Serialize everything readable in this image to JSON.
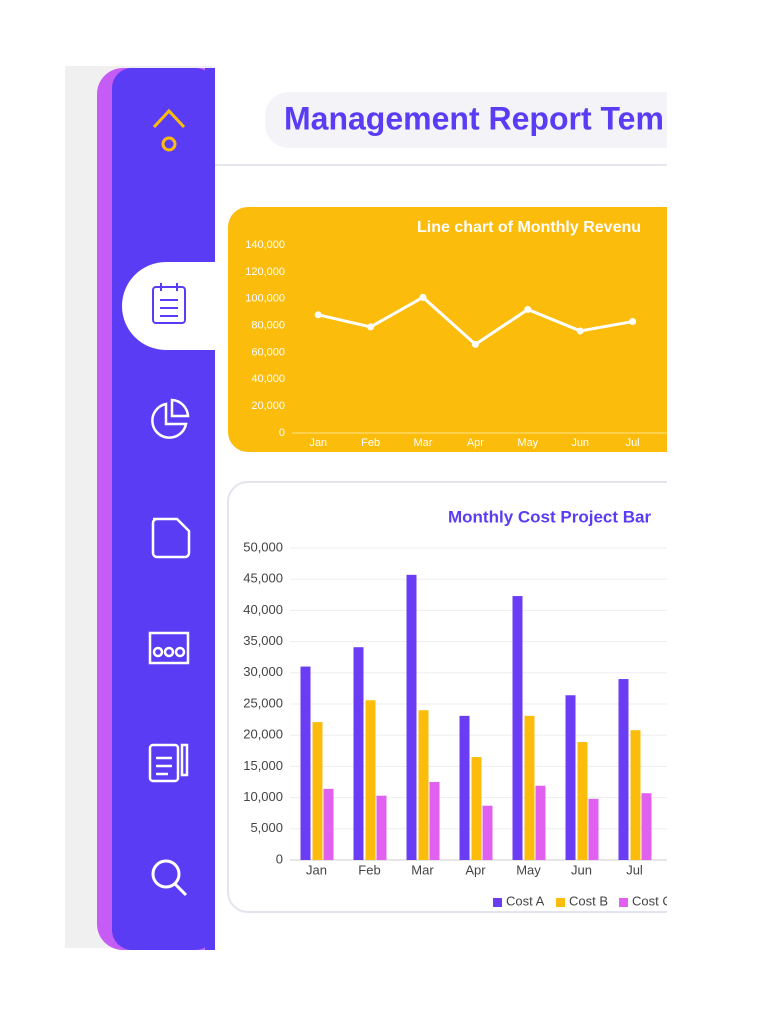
{
  "header": {
    "title": "Management Report Tem"
  },
  "chart_data": [
    {
      "type": "line",
      "title": "Line chart of Monthly Revenu",
      "categories": [
        "Jan",
        "Feb",
        "Mar",
        "Apr",
        "May",
        "Jun",
        "Jul"
      ],
      "values": [
        88000,
        79000,
        101000,
        66000,
        92000,
        76000,
        83000
      ],
      "color": "#ffffff",
      "ylim": [
        0,
        140000
      ],
      "yticks": [
        0,
        {
          "value": 20000,
          "label": "20,000"
        },
        {
          "value": 40000,
          "label": "40,000"
        },
        {
          "value": 60000,
          "label": "60,000"
        },
        {
          "value": 80000,
          "label": "80,000"
        },
        {
          "value": 100000,
          "label": "100,000"
        },
        {
          "value": 120000,
          "label": "120,000"
        },
        {
          "value": 140000,
          "label": "140,000"
        }
      ],
      "grid": false
    },
    {
      "type": "bar",
      "title": "Monthly Cost Project Bar",
      "categories": [
        "Jan",
        "Feb",
        "Mar",
        "Apr",
        "May",
        "Jun",
        "Jul"
      ],
      "series": [
        {
          "name": "Cost A",
          "color": "#6a3df5",
          "values": [
            31000,
            34100,
            45700,
            23100,
            42300,
            26400,
            29000
          ]
        },
        {
          "name": "Cost B",
          "color": "#fbbc0c",
          "values": [
            22100,
            25600,
            24000,
            16500,
            23100,
            18900,
            20800
          ]
        },
        {
          "name": "Cost C",
          "color": "#e060f0",
          "values": [
            11400,
            10300,
            12500,
            8700,
            11900,
            9800,
            10700
          ]
        }
      ],
      "ylim": [
        0,
        50000
      ],
      "yticks": [
        0,
        {
          "value": 5000,
          "label": "5,000"
        },
        {
          "value": 10000,
          "label": "10,000"
        },
        {
          "value": 15000,
          "label": "15,000"
        },
        {
          "value": 20000,
          "label": "20,000"
        },
        {
          "value": 25000,
          "label": "25,000"
        },
        {
          "value": 30000,
          "label": "30,000"
        },
        {
          "value": 35000,
          "label": "35,000"
        },
        {
          "value": 40000,
          "label": "40,000"
        },
        {
          "value": 45000,
          "label": "45,000"
        },
        {
          "value": 50000,
          "label": "50,000"
        }
      ],
      "grid": true,
      "legend": "bottom"
    }
  ]
}
